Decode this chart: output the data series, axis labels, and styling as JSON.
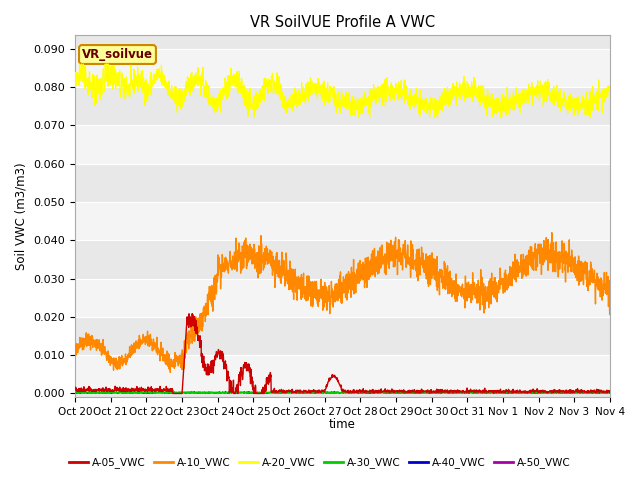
{
  "title": "VR SoilVUE Profile A VWC",
  "ylabel": "Soil VWC (m3/m3)",
  "xlabel": "time",
  "ylim": [
    -0.001,
    0.0935
  ],
  "yticks": [
    0.0,
    0.01,
    0.02,
    0.03,
    0.04,
    0.05,
    0.06,
    0.07,
    0.08,
    0.09
  ],
  "plot_bg_color": "#e8e8e8",
  "legend_label": "VR_soilvue",
  "legend_bg": "#ffff99",
  "legend_edge": "#cc8800",
  "series_colors": {
    "A-05_VWC": "#cc0000",
    "A-10_VWC": "#ff8800",
    "A-20_VWC": "#ffff00",
    "A-30_VWC": "#00cc00",
    "A-40_VWC": "#0000cc",
    "A-50_VWC": "#aa00aa"
  },
  "x_tick_labels": [
    "Oct 20",
    "Oct 21",
    "Oct 22",
    "Oct 23",
    "Oct 24",
    "Oct 25",
    "Oct 26",
    "Oct 27",
    "Oct 28",
    "Oct 29",
    "Oct 30",
    "Oct 31",
    "Nov 1",
    "Nov 2",
    "Nov 3",
    "Nov 4"
  ],
  "n_points": 2000,
  "seed": 42
}
